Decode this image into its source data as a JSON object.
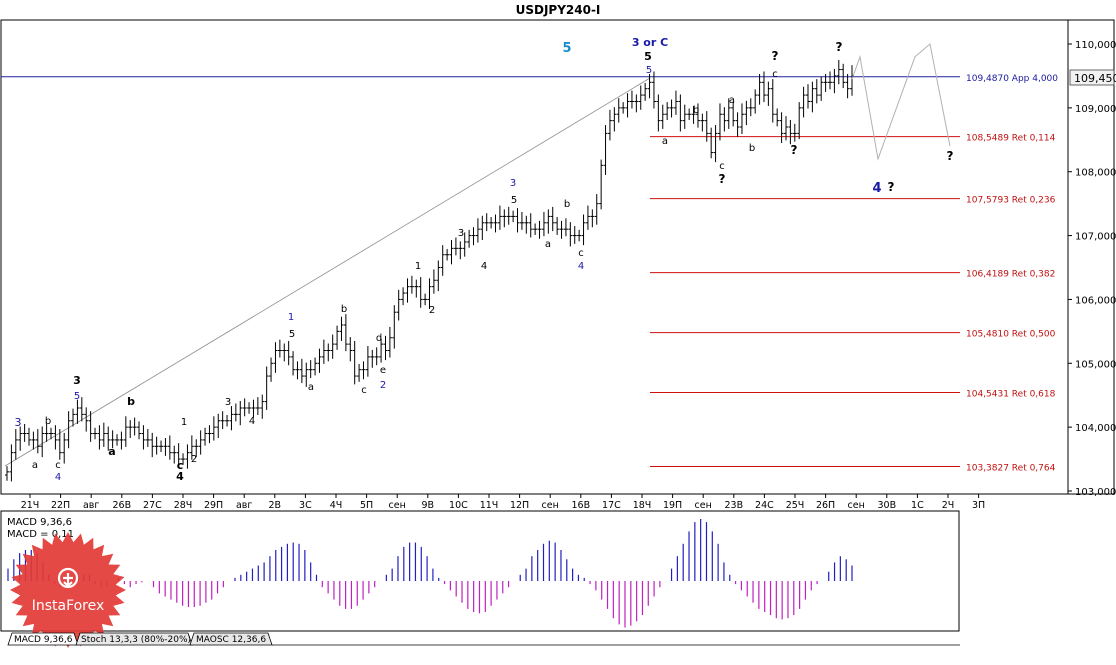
{
  "window": {
    "title": "USDJPY240-I"
  },
  "chart_data": {
    "type": "bar",
    "symbol": "USDJPY240-I",
    "title": "USDJPY240-I",
    "ylim": [
      102.9,
      110.2
    ],
    "price_ticks": [
      "110,000",
      "109,000",
      "108,000",
      "107,000",
      "106,000",
      "105,000",
      "104,000",
      "103,000"
    ],
    "price_tick_values": [
      110.0,
      109.0,
      108.0,
      107.0,
      106.0,
      105.0,
      104.0,
      103.0
    ],
    "current_price_label": "109,450",
    "current_price": 109.45,
    "x_ticks": [
      "21Ч",
      "22П",
      "авг",
      "26В",
      "27С",
      "28Ч",
      "29П",
      "авг",
      "2В",
      "3С",
      "4Ч",
      "5П",
      "сен",
      "9В",
      "10С",
      "11Ч",
      "12П",
      "сен",
      "16В",
      "17С",
      "18Ч",
      "19П",
      "сен",
      "23В",
      "24С",
      "25Ч",
      "26П",
      "сен",
      "30В",
      "1С",
      "2Ч",
      "3П"
    ],
    "bar_closes": [
      103.3,
      103.6,
      103.8,
      103.9,
      103.9,
      103.8,
      103.8,
      103.7,
      103.9,
      103.9,
      103.9,
      103.8,
      103.6,
      103.8,
      104.1,
      104.2,
      104.3,
      104.2,
      104.1,
      103.9,
      103.9,
      103.8,
      103.9,
      103.8,
      103.8,
      103.8,
      103.8,
      104.0,
      104.0,
      104.0,
      103.9,
      103.8,
      103.8,
      103.7,
      103.7,
      103.7,
      103.7,
      103.6,
      103.6,
      103.5,
      103.5,
      103.6,
      103.7,
      103.7,
      103.8,
      103.9,
      103.9,
      104.0,
      104.1,
      104.1,
      104.1,
      104.2,
      104.2,
      104.3,
      104.3,
      104.3,
      104.3,
      104.3,
      104.4,
      104.8,
      105.0,
      105.2,
      105.2,
      105.2,
      105.1,
      104.9,
      104.9,
      104.8,
      104.9,
      104.9,
      105.0,
      105.1,
      105.2,
      105.2,
      105.3,
      105.5,
      105.6,
      105.3,
      105.2,
      104.8,
      104.9,
      104.9,
      105.1,
      105.1,
      105.1,
      105.3,
      105.2,
      105.4,
      105.8,
      106.0,
      106.1,
      106.2,
      106.2,
      106.2,
      106.0,
      106.0,
      106.2,
      106.3,
      106.5,
      106.7,
      106.7,
      106.8,
      106.8,
      106.8,
      106.9,
      107.0,
      107.0,
      107.1,
      107.2,
      107.2,
      107.2,
      107.2,
      107.3,
      107.3,
      107.3,
      107.3,
      107.2,
      107.2,
      107.2,
      107.1,
      107.1,
      107.1,
      107.2,
      107.3,
      107.2,
      107.1,
      107.1,
      107.1,
      107.0,
      107.0,
      107.0,
      107.2,
      107.3,
      107.3,
      107.5,
      108.1,
      108.6,
      108.8,
      108.9,
      109.0,
      109.0,
      109.1,
      109.1,
      109.1,
      109.2,
      109.3,
      109.4,
      109.1,
      108.8,
      108.9,
      109.0,
      109.0,
      109.1,
      108.8,
      108.9,
      108.9,
      108.9,
      108.8,
      108.8,
      108.6,
      108.3,
      108.6,
      108.9,
      108.8,
      109.0,
      108.8,
      108.7,
      108.9,
      109.0,
      109.0,
      109.2,
      109.4,
      109.2,
      109.3,
      108.9,
      108.8,
      108.6,
      108.7,
      108.6,
      108.6,
      109.0,
      109.2,
      109.1,
      109.3,
      109.2,
      109.4,
      109.4,
      109.4,
      109.5,
      109.6,
      109.4,
      109.3,
      109.5
    ],
    "fib_levels": [
      {
        "label": "109,4870 App 4,000",
        "price": 109.487
      },
      {
        "label": "108,5489 Ret 0,114",
        "price": 108.5489
      },
      {
        "label": "107,5793 Ret 0,236",
        "price": 107.5793
      },
      {
        "label": "106,4189 Ret 0,382",
        "price": 106.4189
      },
      {
        "label": "105,4810 Ret 0,500",
        "price": 105.481
      },
      {
        "label": "104,5431 Ret 0,618",
        "price": 104.5431
      },
      {
        "label": "103,3827 Ret 0,764",
        "price": 103.3827
      }
    ],
    "annotations": [
      {
        "text": "3",
        "color": "#1a1aa8",
        "bold": false
      },
      {
        "text": "a",
        "color": "#000000",
        "bold": false
      },
      {
        "text": "b",
        "color": "#000000",
        "bold": false
      },
      {
        "text": "c",
        "color": "#000000",
        "bold": false
      },
      {
        "text": "4",
        "color": "#1a1aa8",
        "bold": false
      },
      {
        "text": "3",
        "color": "#000000",
        "bold": true
      },
      {
        "text": "5",
        "color": "#1a1aa8",
        "bold": false
      },
      {
        "text": "b",
        "color": "#000000",
        "bold": true
      },
      {
        "text": "a",
        "color": "#000000",
        "bold": true
      },
      {
        "text": "1",
        "color": "#000000",
        "bold": false
      },
      {
        "text": "c",
        "color": "#000000",
        "bold": true
      },
      {
        "text": "4",
        "color": "#000000",
        "bold": true
      },
      {
        "text": "2",
        "color": "#000000",
        "bold": false
      },
      {
        "text": "3",
        "color": "#000000",
        "bold": false
      },
      {
        "text": "4",
        "color": "#000000",
        "bold": false
      },
      {
        "text": "1",
        "color": "#1a1aa8",
        "bold": false
      },
      {
        "text": "5",
        "color": "#000000",
        "bold": false
      },
      {
        "text": "a",
        "color": "#000000",
        "bold": false
      },
      {
        "text": "b",
        "color": "#000000",
        "bold": false
      },
      {
        "text": "d",
        "color": "#000000",
        "bold": false
      },
      {
        "text": "e",
        "color": "#000000",
        "bold": false
      },
      {
        "text": "c",
        "color": "#000000",
        "bold": false
      },
      {
        "text": "2",
        "color": "#1a1aa8",
        "bold": false
      },
      {
        "text": "1",
        "color": "#000000",
        "bold": false
      },
      {
        "text": "2",
        "color": "#000000",
        "bold": false
      },
      {
        "text": "3",
        "color": "#000000",
        "bold": false
      },
      {
        "text": "4",
        "color": "#000000",
        "bold": false
      },
      {
        "text": "3",
        "color": "#1a1aa8",
        "bold": false
      },
      {
        "text": "5",
        "color": "#000000",
        "bold": false
      },
      {
        "text": "a",
        "color": "#000000",
        "bold": false
      },
      {
        "text": "b",
        "color": "#000000",
        "bold": false
      },
      {
        "text": "c",
        "color": "#000000",
        "bold": false
      },
      {
        "text": "4",
        "color": "#1a1aa8",
        "bold": false
      },
      {
        "text": "5",
        "color": "#1a8fd0",
        "bold": true
      },
      {
        "text": "3 or C",
        "color": "#1a1aa8",
        "bold": true
      },
      {
        "text": "5",
        "color": "#000000",
        "bold": true
      },
      {
        "text": "5",
        "color": "#1a1aa8",
        "bold": false
      },
      {
        "text": "a",
        "color": "#000000",
        "bold": false
      },
      {
        "text": "b",
        "color": "#000000",
        "bold": false
      },
      {
        "text": "c",
        "color": "#000000",
        "bold": false
      },
      {
        "text": "?",
        "color": "#000000",
        "bold": true
      },
      {
        "text": "a",
        "color": "#000000",
        "bold": false
      },
      {
        "text": "b",
        "color": "#000000",
        "bold": false
      },
      {
        "text": "c",
        "color": "#000000",
        "bold": false
      },
      {
        "text": "?",
        "color": "#000000",
        "bold": true
      },
      {
        "text": "?",
        "color": "#000000",
        "bold": true
      },
      {
        "text": "?",
        "color": "#000000",
        "bold": true
      },
      {
        "text": "4",
        "color": "#1a1aa8",
        "bold": true
      },
      {
        "text": "?",
        "color": "#000000",
        "bold": true
      },
      {
        "text": "?",
        "color": "#000000",
        "bold": true
      }
    ],
    "forecast_path": [
      109.45,
      109.8,
      108.2,
      109.8,
      110.0,
      108.4
    ],
    "indicator": {
      "name": "MACD 9,36,6",
      "value_label": "MACD = 0,11",
      "histogram": [
        0.2,
        0.35,
        0.45,
        0.5,
        0.5,
        0.45,
        0.3,
        0.1,
        -0.05,
        -0.1,
        -0.1,
        -0.05,
        0.05,
        0.1,
        0.1,
        -0.05,
        -0.1,
        -0.08,
        0.0,
        0.05,
        -0.05,
        -0.1,
        -0.05,
        -0.02,
        0.0,
        -0.1,
        -0.2,
        -0.25,
        -0.3,
        -0.35,
        -0.4,
        -0.42,
        -0.42,
        -0.4,
        -0.35,
        -0.3,
        -0.2,
        -0.1,
        0.0,
        0.05,
        0.1,
        0.15,
        0.2,
        0.25,
        0.3,
        0.4,
        0.5,
        0.55,
        0.6,
        0.62,
        0.6,
        0.5,
        0.3,
        0.1,
        -0.1,
        -0.2,
        -0.3,
        -0.4,
        -0.45,
        -0.45,
        -0.4,
        -0.3,
        -0.2,
        -0.1,
        0.0,
        0.1,
        0.2,
        0.4,
        0.55,
        0.62,
        0.62,
        0.55,
        0.4,
        0.2,
        0.05,
        -0.05,
        -0.15,
        -0.25,
        -0.35,
        -0.45,
        -0.5,
        -0.52,
        -0.5,
        -0.4,
        -0.3,
        -0.2,
        -0.1,
        0.0,
        0.1,
        0.2,
        0.4,
        0.5,
        0.6,
        0.65,
        0.62,
        0.5,
        0.35,
        0.2,
        0.1,
        0.05,
        -0.05,
        -0.15,
        -0.3,
        -0.45,
        -0.6,
        -0.7,
        -0.75,
        -0.72,
        -0.65,
        -0.55,
        -0.4,
        -0.25,
        -0.1,
        0.0,
        0.2,
        0.4,
        0.6,
        0.8,
        0.95,
        1.0,
        0.95,
        0.8,
        0.6,
        0.3,
        0.1,
        -0.05,
        -0.15,
        -0.25,
        -0.35,
        -0.45,
        -0.5,
        -0.55,
        -0.6,
        -0.62,
        -0.6,
        -0.55,
        -0.45,
        -0.3,
        -0.15,
        -0.05,
        0.0,
        0.15,
        0.3,
        0.4,
        0.35,
        0.25
      ]
    },
    "indicator_tabs": [
      "MACD 9,36,6",
      "Stoch 13,3,3 (80%-20%)",
      "MAOSC 12,36,6"
    ],
    "colors": {
      "bars": "#000000",
      "fib_lines": "#d01010",
      "fib_labels": "#c01010",
      "horizontal_line": "#2020a0",
      "trend_line": "#8c8c8c",
      "forecast": "#b0b0b0",
      "macd_positive": "#2020c0",
      "macd_negative": "#c020c0",
      "current_price_box": "#f2f2f2"
    }
  },
  "watermark": {
    "brand": "InstaForex"
  }
}
